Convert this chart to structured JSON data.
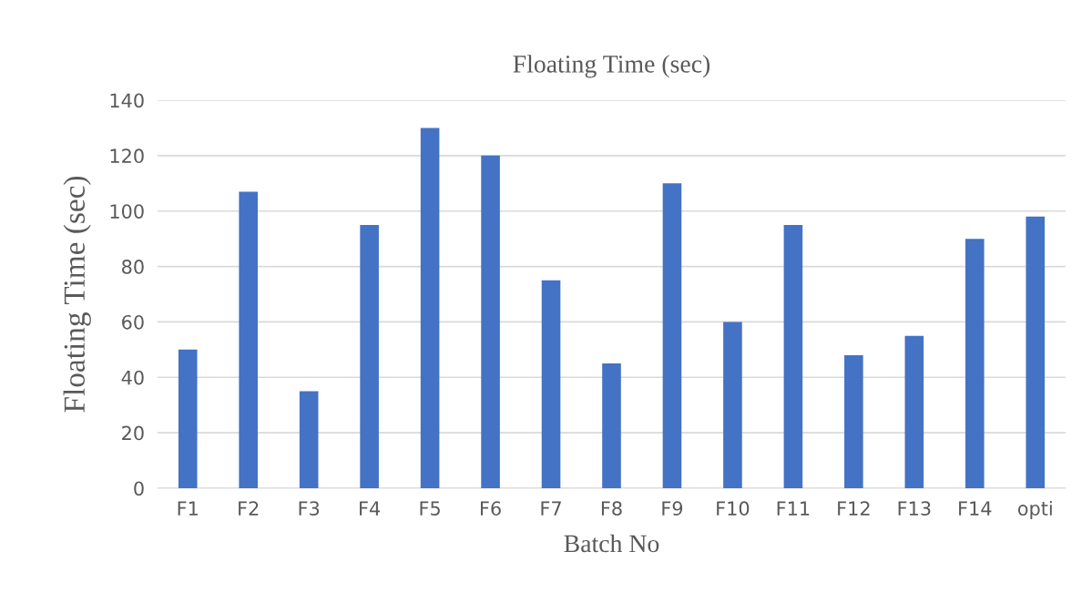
{
  "chart_data": {
    "type": "bar",
    "title": "Floating Time (sec)",
    "xlabel": "Batch No",
    "ylabel": "Floating Time (sec)",
    "categories": [
      "F1",
      "F2",
      "F3",
      "F4",
      "F5",
      "F6",
      "F7",
      "F8",
      "F9",
      "F10",
      "F11",
      "F12",
      "F13",
      "F14",
      "opti"
    ],
    "values": [
      50,
      107,
      35,
      95,
      130,
      120,
      75,
      45,
      110,
      60,
      95,
      48,
      55,
      90,
      98
    ],
    "color": "#4472c4",
    "ylim": [
      0,
      140
    ],
    "yticks": [
      0,
      20,
      40,
      60,
      80,
      100,
      120,
      140
    ],
    "grid": "y"
  }
}
